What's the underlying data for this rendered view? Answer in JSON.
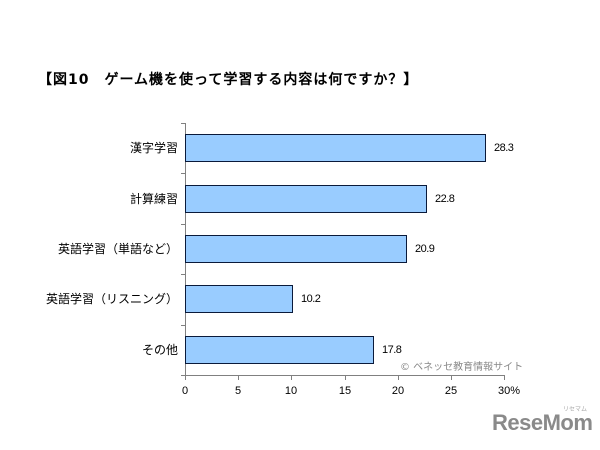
{
  "title": "【図10　ゲーム機を使って学習する内容は何ですか？】",
  "copyright": "© ベネッセ教育情報サイト",
  "logo": {
    "text": "ReseMom",
    "kana": "リセマム"
  },
  "colors": {
    "bar_fill": "#99CCFF",
    "bar_border": "#0a1a3a",
    "axis": "#808080"
  },
  "x_ticks": [
    "0",
    "5",
    "10",
    "15",
    "20",
    "25",
    "30%"
  ],
  "chart_data": {
    "type": "bar",
    "orientation": "horizontal",
    "title": "【図10　ゲーム機を使って学習する内容は何ですか？】",
    "categories": [
      "漢字学習",
      "計算練習",
      "英語学習（単語など）",
      "英語学習（リスニング）",
      "その他"
    ],
    "values": [
      28.3,
      22.8,
      20.9,
      10.2,
      17.8
    ],
    "value_labels": [
      "28.3",
      "22.8",
      "20.9",
      "10.2",
      "17.8"
    ],
    "xlabel": "%",
    "ylabel": "",
    "xlim": [
      0,
      30
    ],
    "x_ticks": [
      0,
      5,
      10,
      15,
      20,
      25,
      30
    ],
    "grid": false,
    "legend": null,
    "annotation": "© ベネッセ教育情報サイト"
  }
}
